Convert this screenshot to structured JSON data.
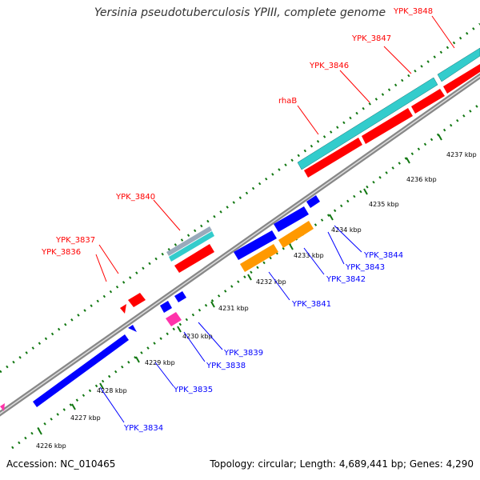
{
  "title": "Yersinia pseudotuberculosis YPIII, complete genome",
  "footer": {
    "accession": "Accession: NC_010465",
    "summary": "Topology: circular; Length: 4,689,441 bp; Genes: 4,290"
  },
  "colors": {
    "forward_gene": "#ff0000",
    "reverse_gene": "#0000ff",
    "cds_orange": "#ff9900",
    "cds_cyan": "#33cccc",
    "rna_pink": "#ff33aa",
    "pseudo_gray": "#99aabb",
    "tick": "#117711",
    "backbone": "#999999"
  },
  "scale_labels": [
    "4226 kbp",
    "4227 kbp",
    "4228 kbp",
    "4229 kbp",
    "4230 kbp",
    "4231 kbp",
    "4232 kbp",
    "4233 kbp",
    "4234 kbp",
    "4235 kbp",
    "4236 kbp",
    "4237 kbp"
  ],
  "genes": [
    {
      "label": "YPK_3834",
      "strand": "reverse"
    },
    {
      "label": "YPK_3835",
      "strand": "reverse"
    },
    {
      "label": "YPK_3836",
      "strand": "forward"
    },
    {
      "label": "YPK_3837",
      "strand": "forward"
    },
    {
      "label": "YPK_3838",
      "strand": "reverse"
    },
    {
      "label": "YPK_3839",
      "strand": "reverse"
    },
    {
      "label": "YPK_3840",
      "strand": "forward"
    },
    {
      "label": "YPK_3841",
      "strand": "reverse"
    },
    {
      "label": "YPK_3842",
      "strand": "reverse"
    },
    {
      "label": "YPK_3843",
      "strand": "reverse"
    },
    {
      "label": "YPK_3844",
      "strand": "reverse"
    },
    {
      "label": "rhaB",
      "strand": "forward"
    },
    {
      "label": "YPK_3846",
      "strand": "forward"
    },
    {
      "label": "YPK_3847",
      "strand": "forward"
    },
    {
      "label": "YPK_3848",
      "strand": "forward"
    }
  ]
}
